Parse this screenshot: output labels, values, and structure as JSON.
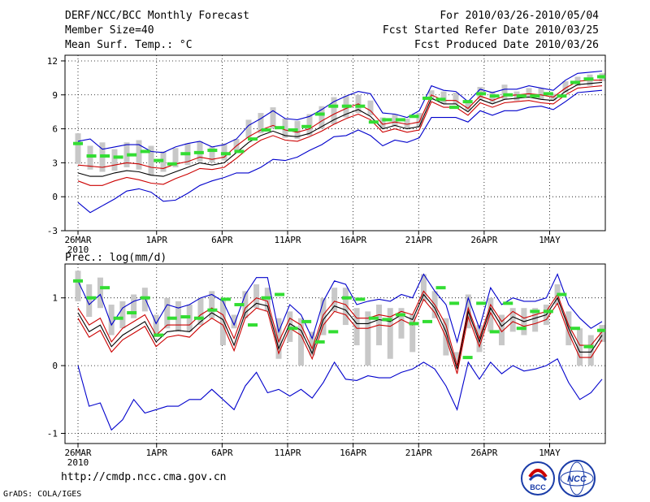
{
  "header": {
    "title": "DERF/NCC/BCC Monthly Forecast",
    "member": "Member Size=40",
    "variable": "Mean Surf. Temp.: °C",
    "period": "For 2010/03/26-2010/05/04",
    "started": "Fcst Started Refer Date 2010/03/25",
    "produced": "Fcst Produced Date 2010/03/26"
  },
  "footer": {
    "url": "http://cmdp.ncc.cma.gov.cn",
    "grads": "GrADS: COLA/IGES",
    "logo_bcc": "BCC",
    "logo_ncc": "NCC"
  },
  "colors": {
    "blue": "#0000cc",
    "red": "#cc0000",
    "black": "#000000",
    "green": "#33dd33",
    "gray": "#c8c8c8"
  },
  "chart_data": [
    {
      "type": "line",
      "title": "Mean Surf. Temp.: °C",
      "x_tick_labels": [
        "26MAR",
        "1APR",
        "6APR",
        "11APR",
        "16APR",
        "21APR",
        "26APR",
        "1MAY"
      ],
      "x_tick_days": [
        0,
        6,
        11,
        16,
        21,
        26,
        31,
        36
      ],
      "year_label": "2010",
      "ylim": [
        -3,
        12.5
      ],
      "yticks": [
        -3,
        0,
        3,
        6,
        9,
        12
      ],
      "days": 40,
      "series": [
        {
          "name": "upper bound",
          "color": "blue",
          "values": [
            4.9,
            5.1,
            4.2,
            4.4,
            4.6,
            4.6,
            4.0,
            3.9,
            4.4,
            4.7,
            4.9,
            4.4,
            4.6,
            5.1,
            6.3,
            6.9,
            7.6,
            6.9,
            6.8,
            7.1,
            7.7,
            8.4,
            8.9,
            9.3,
            9.1,
            7.4,
            7.3,
            7.0,
            7.6,
            9.8,
            9.4,
            9.3,
            8.4,
            9.5,
            9.2,
            9.5,
            9.5,
            9.8,
            9.6,
            9.4,
            10.3,
            10.9,
            11.0,
            11.1
          ]
        },
        {
          "name": "upper red",
          "color": "red",
          "values": [
            2.8,
            2.7,
            2.6,
            2.8,
            3.0,
            2.9,
            2.6,
            2.5,
            2.9,
            3.1,
            3.5,
            3.3,
            3.5,
            4.5,
            5.3,
            5.9,
            6.3,
            5.9,
            5.7,
            6.0,
            6.7,
            7.3,
            7.8,
            8.2,
            7.6,
            6.4,
            6.6,
            6.4,
            6.6,
            9.0,
            8.5,
            8.5,
            7.8,
            8.9,
            8.5,
            8.9,
            9.0,
            9.1,
            9.0,
            8.8,
            9.6,
            10.2,
            10.3,
            10.3
          ]
        },
        {
          "name": "median",
          "color": "black",
          "values": [
            2.1,
            1.8,
            1.8,
            2.1,
            2.3,
            2.2,
            1.9,
            1.8,
            2.2,
            2.6,
            3.0,
            2.8,
            3.0,
            3.9,
            4.8,
            5.4,
            5.8,
            5.4,
            5.3,
            5.6,
            6.2,
            6.8,
            7.3,
            7.7,
            7.1,
            6.0,
            6.3,
            6.0,
            6.2,
            8.7,
            8.2,
            8.2,
            7.5,
            8.6,
            8.2,
            8.6,
            8.7,
            8.8,
            8.6,
            8.5,
            9.3,
            9.9,
            10.0,
            10.1
          ]
        },
        {
          "name": "lower red",
          "color": "red",
          "values": [
            1.4,
            1.0,
            1.0,
            1.4,
            1.7,
            1.5,
            1.2,
            1.1,
            1.6,
            2.0,
            2.5,
            2.4,
            2.6,
            3.4,
            4.3,
            5.0,
            5.4,
            5.0,
            4.9,
            5.3,
            5.8,
            6.4,
            6.9,
            7.3,
            6.8,
            5.7,
            6.0,
            5.7,
            5.9,
            8.4,
            7.9,
            7.9,
            7.2,
            8.3,
            7.9,
            8.3,
            8.4,
            8.5,
            8.3,
            8.2,
            9.0,
            9.6,
            9.7,
            9.8
          ]
        },
        {
          "name": "lower bound",
          "color": "blue",
          "values": [
            -0.5,
            -1.4,
            -0.8,
            -0.2,
            0.5,
            0.7,
            0.4,
            -0.4,
            -0.3,
            0.3,
            1.0,
            1.4,
            1.7,
            2.1,
            2.1,
            2.6,
            3.3,
            3.2,
            3.5,
            4.1,
            4.6,
            5.3,
            5.4,
            5.9,
            5.4,
            4.5,
            5.0,
            4.8,
            5.2,
            7.0,
            7.0,
            7.0,
            6.6,
            7.6,
            7.2,
            7.6,
            7.6,
            7.9,
            8.0,
            7.7,
            8.4,
            9.2,
            9.3,
            9.4
          ]
        }
      ],
      "ensemble_box_low": [
        2.9,
        2.4,
        2.2,
        2.3,
        2.6,
        2.4,
        1.9,
        2.2,
        2.6,
        2.8,
        3.1,
        3.0,
        3.2,
        4.1,
        5.2,
        5.6,
        6.0,
        5.2,
        5.1,
        5.4,
        6.0,
        6.4,
        7.0,
        7.4,
        7.2,
        6.0,
        6.2,
        6.0,
        6.2,
        8.6,
        8.2,
        8.2,
        7.6,
        8.6,
        8.3,
        8.6,
        8.5,
        8.8,
        8.6,
        8.5,
        9.2,
        9.8,
        9.8,
        10.2
      ],
      "ensemble_box_high": [
        5.6,
        4.5,
        4.8,
        4.2,
        4.8,
        5.0,
        4.5,
        4.0,
        4.3,
        4.7,
        4.9,
        4.4,
        4.7,
        5.1,
        6.8,
        7.4,
        7.9,
        6.9,
        6.7,
        7.3,
        8.0,
        8.8,
        8.9,
        9.0,
        8.5,
        7.0,
        7.3,
        6.9,
        7.4,
        9.4,
        9.3,
        9.2,
        8.3,
        9.7,
        9.3,
        9.9,
        9.3,
        9.6,
        9.6,
        9.1,
        10.2,
        10.6,
        10.8,
        10.9
      ],
      "observed_green": [
        4.7,
        3.6,
        3.6,
        3.5,
        3.7,
        4.0,
        3.2,
        2.9,
        3.8,
        3.9,
        4.1,
        3.8,
        4.0,
        5.1,
        5.9,
        6.1,
        5.9,
        6.2,
        7.3,
        8.0,
        8.0,
        8.0,
        6.6,
        6.8,
        6.8,
        7.1,
        8.7,
        8.6,
        7.9,
        8.4,
        9.1,
        8.9,
        9.0,
        8.9,
        8.9,
        9.1,
        8.9,
        10.1,
        10.4,
        10.6
      ]
    },
    {
      "type": "line",
      "title": "Prec.: log(mm/d)",
      "x_tick_labels": [
        "26MAR",
        "1APR",
        "6APR",
        "11APR",
        "16APR",
        "21APR",
        "26APR",
        "1MAY"
      ],
      "x_tick_days": [
        0,
        6,
        11,
        16,
        21,
        26,
        31,
        36
      ],
      "year_label": "2010",
      "ylim": [
        -1.15,
        1.5
      ],
      "yticks": [
        -1,
        0,
        1
      ],
      "days": 40,
      "series": [
        {
          "name": "upper bound",
          "color": "blue",
          "values": [
            1.25,
            0.9,
            1.05,
            0.6,
            0.85,
            0.95,
            1.0,
            0.62,
            0.9,
            0.85,
            0.9,
            1.0,
            1.05,
            0.95,
            0.6,
            1.05,
            1.3,
            1.3,
            0.5,
            0.9,
            0.75,
            0.4,
            0.95,
            1.25,
            1.2,
            0.9,
            0.95,
            0.98,
            0.95,
            1.05,
            1.0,
            1.35,
            1.1,
            0.9,
            0.35,
            1.0,
            0.55,
            1.15,
            0.9,
            1.0,
            0.95,
            0.95,
            1.0,
            1.35,
            0.9,
            0.7,
            0.55,
            0.65
          ]
        },
        {
          "name": "upper red",
          "color": "red",
          "values": [
            0.85,
            0.6,
            0.7,
            0.35,
            0.55,
            0.65,
            0.75,
            0.45,
            0.6,
            0.6,
            0.6,
            0.75,
            0.85,
            0.75,
            0.4,
            0.85,
            1.0,
            0.95,
            0.35,
            0.7,
            0.6,
            0.25,
            0.75,
            0.95,
            0.9,
            0.7,
            0.7,
            0.75,
            0.72,
            0.8,
            0.75,
            1.1,
            0.9,
            0.6,
            0.0,
            0.85,
            0.4,
            0.9,
            0.65,
            0.8,
            0.7,
            0.75,
            0.8,
            1.05,
            0.6,
            0.3,
            0.3,
            0.5
          ]
        },
        {
          "name": "median",
          "color": "black",
          "values": [
            0.78,
            0.5,
            0.6,
            0.28,
            0.45,
            0.55,
            0.65,
            0.35,
            0.5,
            0.52,
            0.5,
            0.65,
            0.78,
            0.68,
            0.3,
            0.78,
            0.92,
            0.88,
            0.25,
            0.62,
            0.52,
            0.18,
            0.68,
            0.88,
            0.82,
            0.62,
            0.62,
            0.68,
            0.65,
            0.75,
            0.68,
            1.05,
            0.85,
            0.5,
            -0.05,
            0.8,
            0.35,
            0.85,
            0.58,
            0.72,
            0.65,
            0.7,
            0.75,
            1.0,
            0.55,
            0.2,
            0.2,
            0.45
          ]
        },
        {
          "name": "lower red",
          "color": "red",
          "values": [
            0.7,
            0.42,
            0.52,
            0.2,
            0.38,
            0.48,
            0.58,
            0.28,
            0.42,
            0.45,
            0.42,
            0.58,
            0.7,
            0.6,
            0.22,
            0.7,
            0.85,
            0.8,
            0.18,
            0.55,
            0.45,
            0.1,
            0.6,
            0.8,
            0.75,
            0.55,
            0.55,
            0.6,
            0.58,
            0.68,
            0.6,
            0.98,
            0.78,
            0.42,
            -0.12,
            0.72,
            0.28,
            0.78,
            0.5,
            0.65,
            0.58,
            0.62,
            0.68,
            0.92,
            0.48,
            0.12,
            0.12,
            0.38
          ]
        },
        {
          "name": "lower bound",
          "color": "blue",
          "values": [
            0.0,
            -0.6,
            -0.55,
            -0.95,
            -0.8,
            -0.5,
            -0.7,
            -0.65,
            -0.6,
            -0.6,
            -0.5,
            -0.5,
            -0.35,
            -0.5,
            -0.65,
            -0.3,
            -0.1,
            -0.4,
            -0.35,
            -0.45,
            -0.35,
            -0.48,
            -0.25,
            0.05,
            -0.2,
            -0.22,
            -0.15,
            -0.18,
            -0.18,
            -0.1,
            -0.05,
            0.05,
            -0.05,
            -0.3,
            -0.65,
            0.05,
            -0.2,
            0.05,
            -0.12,
            0.0,
            -0.08,
            -0.05,
            0.0,
            0.1,
            -0.25,
            -0.5,
            -0.4,
            -0.2
          ]
        }
      ],
      "ensemble_box_low": [
        0.95,
        0.72,
        0.85,
        0.45,
        0.55,
        0.7,
        0.8,
        0.42,
        0.55,
        0.5,
        0.5,
        0.6,
        0.7,
        0.3,
        0.55,
        0.7,
        0.85,
        0.8,
        0.1,
        0.35,
        0.0,
        0.15,
        0.45,
        0.8,
        0.6,
        0.3,
        0.0,
        0.3,
        0.1,
        0.4,
        0.2,
        0.95,
        0.7,
        0.15,
        0.05,
        0.55,
        0.2,
        0.5,
        0.3,
        0.5,
        0.45,
        0.5,
        0.6,
        0.9,
        0.3,
        0.0,
        0.0,
        0.35
      ],
      "ensemble_box_high": [
        1.4,
        1.2,
        1.3,
        0.9,
        0.95,
        1.05,
        1.15,
        0.75,
        1.0,
        0.95,
        0.9,
        1.0,
        1.1,
        1.0,
        0.75,
        1.1,
        1.2,
        1.15,
        0.7,
        0.8,
        0.7,
        0.5,
        1.0,
        1.15,
        1.15,
        0.85,
        0.8,
        0.9,
        0.85,
        0.85,
        0.75,
        1.35,
        1.1,
        0.7,
        0.2,
        1.05,
        0.6,
        1.0,
        0.75,
        0.85,
        0.85,
        0.85,
        0.9,
        1.2,
        0.8,
        0.55,
        0.45,
        0.6
      ],
      "observed_green": [
        1.25,
        1.0,
        1.15,
        0.7,
        0.78,
        1.0,
        0.45,
        0.7,
        0.72,
        0.7,
        0.82,
        0.98,
        0.9,
        0.6,
        1.0,
        1.05,
        0.55,
        0.65,
        0.35,
        0.5,
        1.0,
        0.98,
        0.7,
        0.68,
        0.75,
        0.62,
        0.65,
        1.15,
        0.92,
        0.12,
        0.92,
        0.5,
        0.92,
        0.55,
        0.8,
        0.8,
        1.05,
        0.55,
        0.28,
        0.52
      ]
    }
  ]
}
